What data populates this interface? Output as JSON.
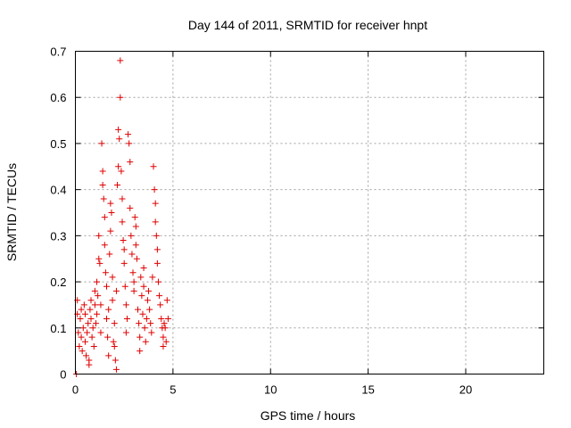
{
  "chart_data": {
    "type": "scatter",
    "title": "Day 144 of 2011, SRMTID for receiver hnpt",
    "xlabel": "GPS time / hours",
    "ylabel": "SRMTID / TECUs",
    "xlim": [
      0,
      24
    ],
    "ylim": [
      0,
      0.7
    ],
    "xticks": [
      0,
      5,
      10,
      15,
      20
    ],
    "yticks": [
      0,
      0.1,
      0.2,
      0.3,
      0.4,
      0.5,
      0.6,
      0.7
    ],
    "xtick_labels": [
      "0",
      "5",
      "10",
      "15",
      "20"
    ],
    "ytick_labels": [
      "0",
      "0.1",
      "0.2",
      "0.3",
      "0.4",
      "0.5",
      "0.6",
      "0.7"
    ],
    "grid": true,
    "marker": "+",
    "color": "#e00000",
    "series": [
      {
        "name": "SRMTID",
        "points": [
          [
            0.05,
            0.0
          ],
          [
            0.1,
            0.16
          ],
          [
            0.1,
            0.13
          ],
          [
            0.15,
            0.09
          ],
          [
            0.2,
            0.06
          ],
          [
            0.25,
            0.12
          ],
          [
            0.3,
            0.14
          ],
          [
            0.3,
            0.08
          ],
          [
            0.35,
            0.05
          ],
          [
            0.4,
            0.1
          ],
          [
            0.45,
            0.15
          ],
          [
            0.5,
            0.13
          ],
          [
            0.5,
            0.07
          ],
          [
            0.55,
            0.04
          ],
          [
            0.6,
            0.09
          ],
          [
            0.65,
            0.11
          ],
          [
            0.7,
            0.03
          ],
          [
            0.7,
            0.02
          ],
          [
            0.75,
            0.14
          ],
          [
            0.8,
            0.16
          ],
          [
            0.8,
            0.12
          ],
          [
            0.85,
            0.08
          ],
          [
            0.9,
            0.1
          ],
          [
            0.95,
            0.06
          ],
          [
            1.0,
            0.18
          ],
          [
            1.0,
            0.15
          ],
          [
            1.05,
            0.11
          ],
          [
            1.1,
            0.13
          ],
          [
            1.1,
            0.2
          ],
          [
            1.15,
            0.17
          ],
          [
            1.2,
            0.3
          ],
          [
            1.2,
            0.25
          ],
          [
            1.25,
            0.24
          ],
          [
            1.3,
            0.09
          ],
          [
            1.3,
            0.15
          ],
          [
            1.35,
            0.5
          ],
          [
            1.4,
            0.41
          ],
          [
            1.4,
            0.44
          ],
          [
            1.45,
            0.38
          ],
          [
            1.5,
            0.34
          ],
          [
            1.5,
            0.28
          ],
          [
            1.55,
            0.22
          ],
          [
            1.6,
            0.19
          ],
          [
            1.6,
            0.12
          ],
          [
            1.65,
            0.08
          ],
          [
            1.7,
            0.04
          ],
          [
            1.7,
            0.14
          ],
          [
            1.75,
            0.26
          ],
          [
            1.8,
            0.31
          ],
          [
            1.8,
            0.37
          ],
          [
            1.85,
            0.35
          ],
          [
            1.9,
            0.21
          ],
          [
            1.9,
            0.16
          ],
          [
            1.95,
            0.07
          ],
          [
            2.0,
            0.06
          ],
          [
            2.0,
            0.11
          ],
          [
            2.05,
            0.03
          ],
          [
            2.1,
            0.01
          ],
          [
            2.1,
            0.18
          ],
          [
            2.15,
            0.41
          ],
          [
            2.2,
            0.45
          ],
          [
            2.2,
            0.53
          ],
          [
            2.25,
            0.51
          ],
          [
            2.3,
            0.68
          ],
          [
            2.3,
            0.6
          ],
          [
            2.35,
            0.44
          ],
          [
            2.4,
            0.38
          ],
          [
            2.4,
            0.33
          ],
          [
            2.45,
            0.29
          ],
          [
            2.5,
            0.27
          ],
          [
            2.5,
            0.24
          ],
          [
            2.55,
            0.19
          ],
          [
            2.6,
            0.15
          ],
          [
            2.6,
            0.09
          ],
          [
            2.65,
            0.12
          ],
          [
            2.7,
            0.52
          ],
          [
            2.75,
            0.5
          ],
          [
            2.8,
            0.46
          ],
          [
            2.8,
            0.36
          ],
          [
            2.85,
            0.3
          ],
          [
            2.9,
            0.26
          ],
          [
            2.95,
            0.22
          ],
          [
            3.0,
            0.2
          ],
          [
            3.0,
            0.18
          ],
          [
            3.05,
            0.34
          ],
          [
            3.1,
            0.32
          ],
          [
            3.1,
            0.28
          ],
          [
            3.15,
            0.25
          ],
          [
            3.2,
            0.14
          ],
          [
            3.25,
            0.11
          ],
          [
            3.3,
            0.08
          ],
          [
            3.3,
            0.05
          ],
          [
            3.35,
            0.21
          ],
          [
            3.4,
            0.17
          ],
          [
            3.45,
            0.13
          ],
          [
            3.5,
            0.19
          ],
          [
            3.5,
            0.23
          ],
          [
            3.55,
            0.1
          ],
          [
            3.6,
            0.07
          ],
          [
            3.65,
            0.12
          ],
          [
            3.7,
            0.16
          ],
          [
            3.75,
            0.18
          ],
          [
            3.8,
            0.14
          ],
          [
            3.85,
            0.11
          ],
          [
            3.9,
            0.09
          ],
          [
            3.95,
            0.21
          ],
          [
            4.0,
            0.45
          ],
          [
            4.05,
            0.4
          ],
          [
            4.1,
            0.37
          ],
          [
            4.1,
            0.33
          ],
          [
            4.15,
            0.3
          ],
          [
            4.2,
            0.27
          ],
          [
            4.2,
            0.24
          ],
          [
            4.25,
            0.2
          ],
          [
            4.3,
            0.17
          ],
          [
            4.35,
            0.15
          ],
          [
            4.4,
            0.12
          ],
          [
            4.45,
            0.1
          ],
          [
            4.5,
            0.08
          ],
          [
            4.5,
            0.06
          ],
          [
            4.55,
            0.11
          ],
          [
            4.6,
            0.1
          ],
          [
            4.65,
            0.07
          ],
          [
            4.7,
            0.16
          ],
          [
            4.75,
            0.12
          ]
        ]
      }
    ]
  }
}
